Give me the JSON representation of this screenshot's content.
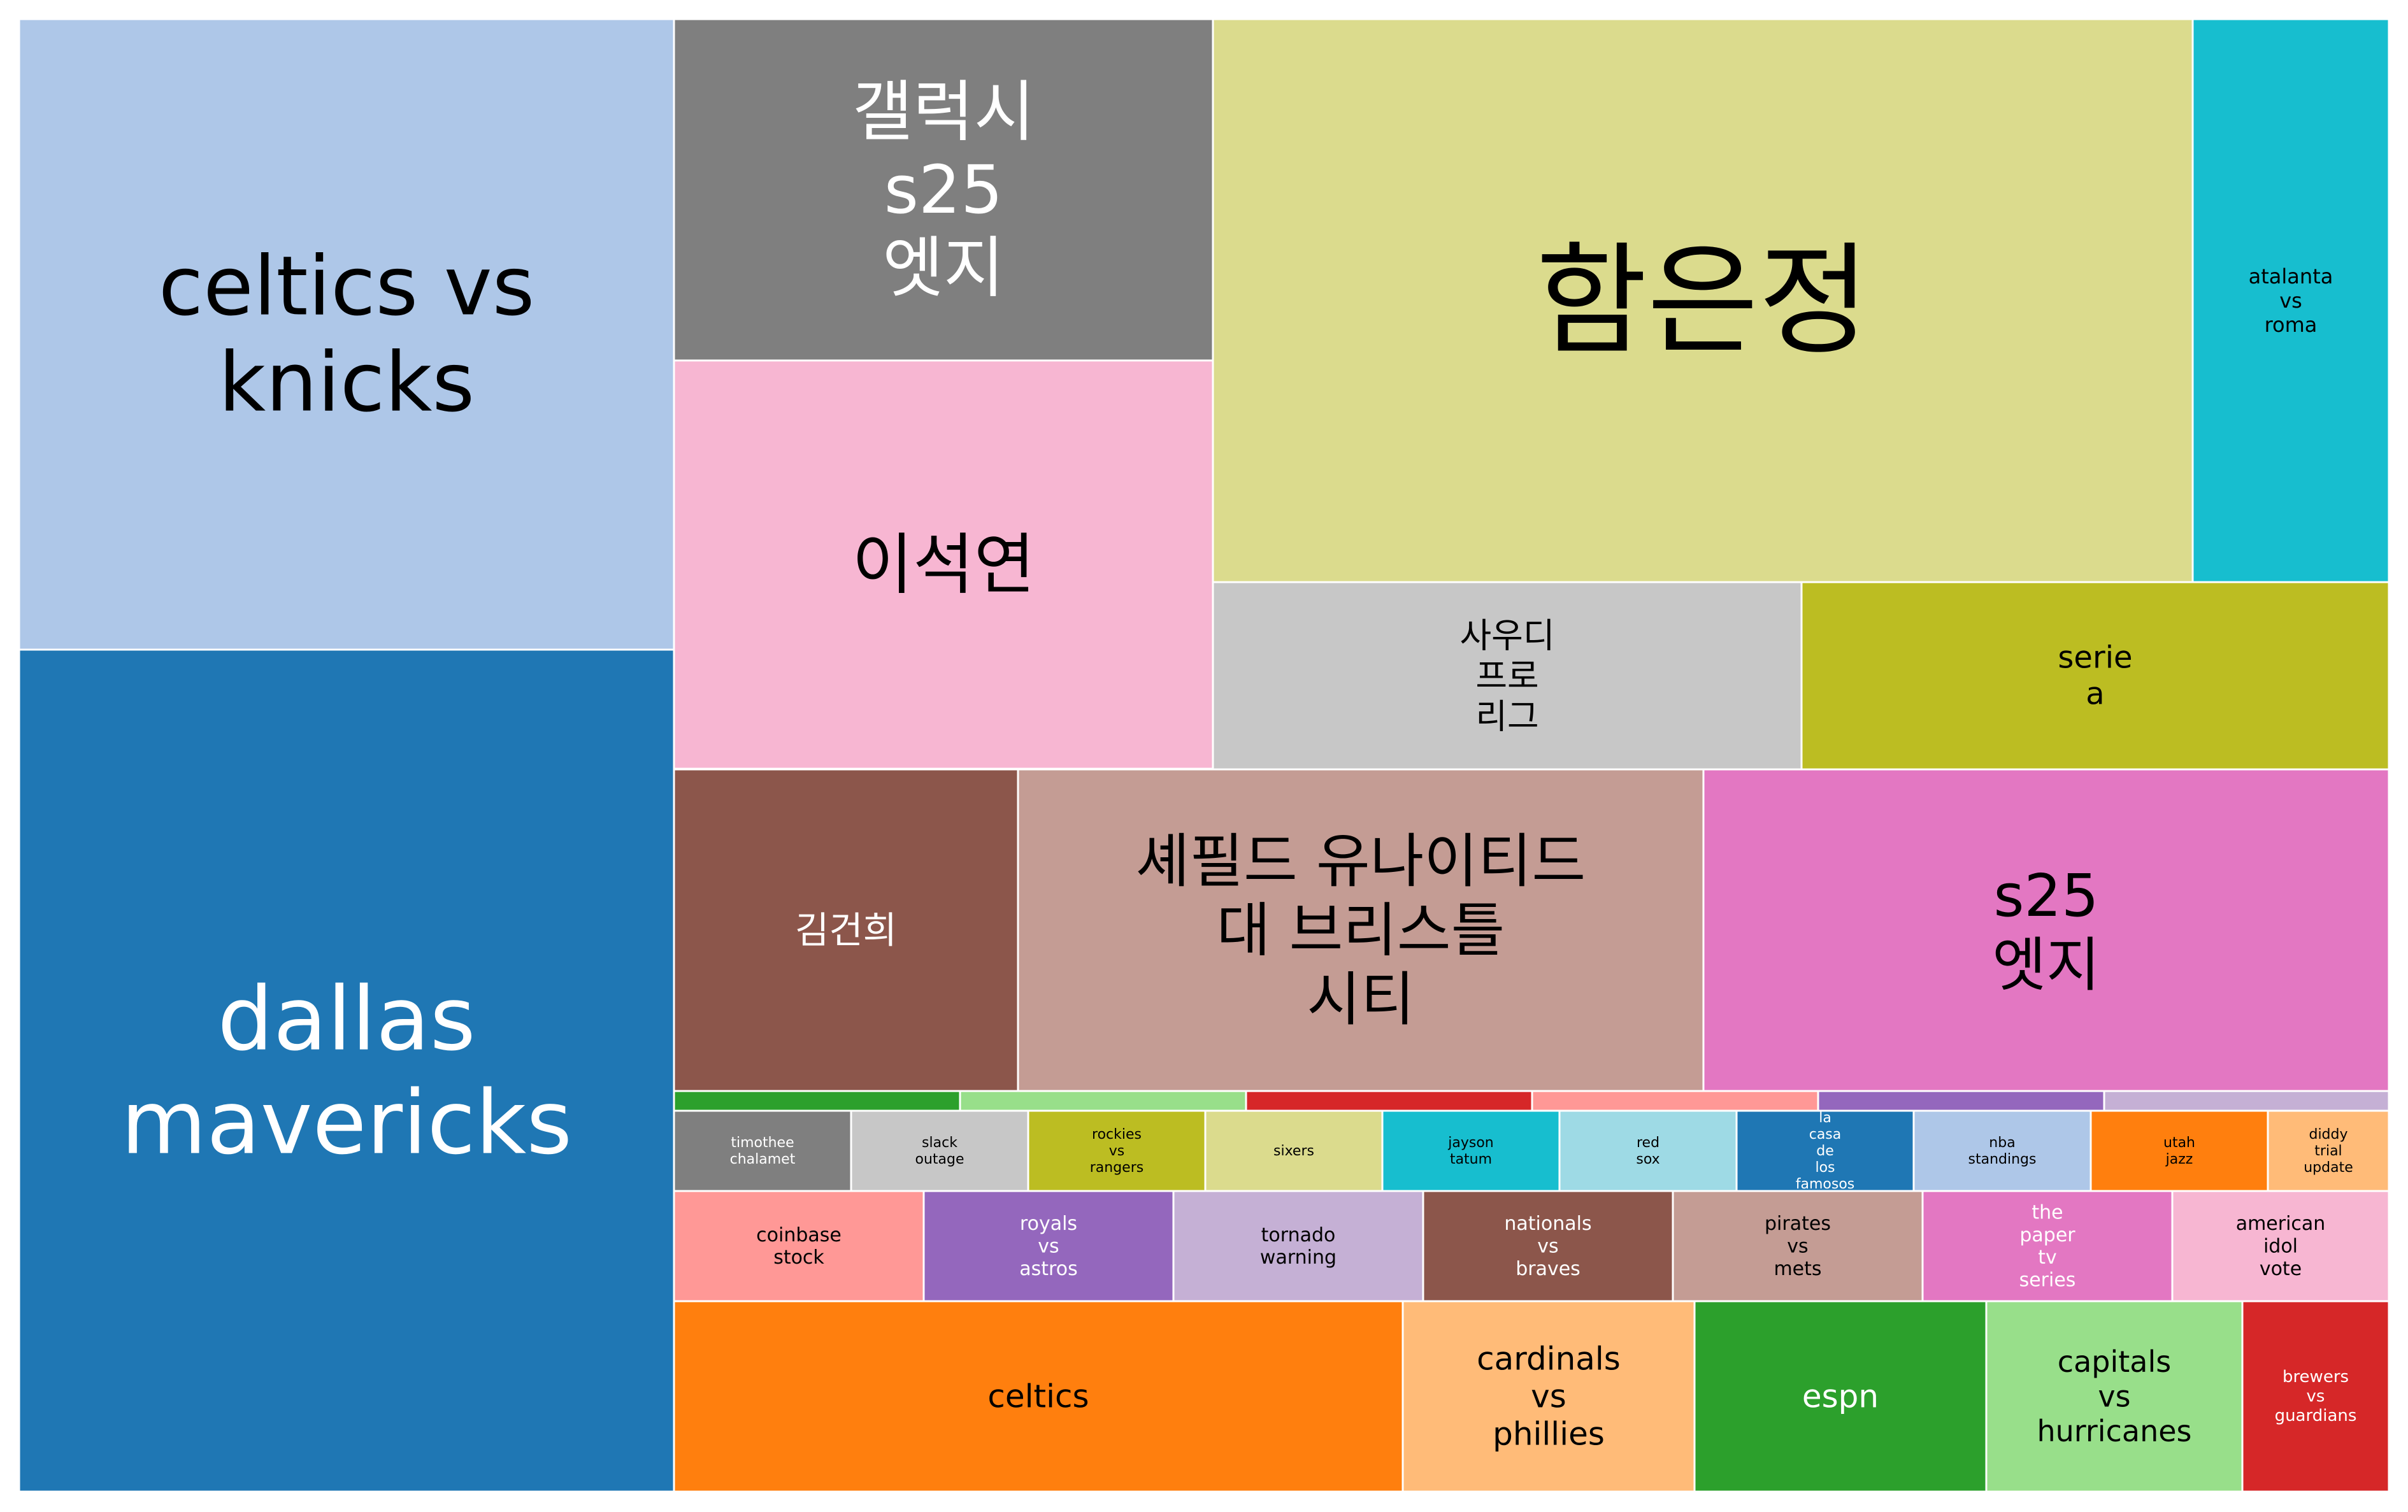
{
  "chart_data": {
    "type": "treemap",
    "title": "",
    "items": [
      {
        "label": "celtics vs knicks",
        "lines": [
          "celtics vs",
          "knicks"
        ],
        "color": "#aec7e8",
        "text_color": "#000000"
      },
      {
        "label": "dallas mavericks",
        "lines": [
          "dallas",
          "mavericks"
        ],
        "color": "#1f77b4",
        "text_color": "#ffffff"
      },
      {
        "label": "갤럭시 s25 엣지",
        "lines": [
          "갤럭시",
          "s25",
          "엣지"
        ],
        "color": "#7f7f7f",
        "text_color": "#ffffff"
      },
      {
        "label": "이석연",
        "lines": [
          "이석연"
        ],
        "color": "#f7b6d2",
        "text_color": "#000000"
      },
      {
        "label": "함은정",
        "lines": [
          "함은정"
        ],
        "color": "#dbdb8d",
        "text_color": "#000000"
      },
      {
        "label": "atalanta vs roma",
        "lines": [
          "atalanta",
          "vs",
          "roma"
        ],
        "color": "#17becf",
        "text_color": "#000000"
      },
      {
        "label": "사우디 프로 리그",
        "lines": [
          "사우디",
          "프로",
          "리그"
        ],
        "color": "#c7c7c7",
        "text_color": "#000000"
      },
      {
        "label": "serie a",
        "lines": [
          "serie",
          "a"
        ],
        "color": "#bcbd22",
        "text_color": "#000000"
      },
      {
        "label": "김건희",
        "lines": [
          "김건희"
        ],
        "color": "#8c564b",
        "text_color": "#ffffff"
      },
      {
        "label": "셰필드 유나이티드 대 브리스틀 시티",
        "lines": [
          "셰필드 유나이티드",
          "대 브리스틀",
          "시티"
        ],
        "color": "#c49c94",
        "text_color": "#000000"
      },
      {
        "label": "s25 엣지",
        "lines": [
          "s25",
          "엣지"
        ],
        "color": "#e377c2",
        "text_color": "#000000"
      },
      {
        "label": "",
        "lines": [],
        "color": "#2ca02c",
        "text_color": "#ffffff"
      },
      {
        "label": "",
        "lines": [],
        "color": "#98df8a",
        "text_color": "#000000"
      },
      {
        "label": "",
        "lines": [],
        "color": "#d62728",
        "text_color": "#ffffff"
      },
      {
        "label": "",
        "lines": [],
        "color": "#ff9896",
        "text_color": "#000000"
      },
      {
        "label": "",
        "lines": [],
        "color": "#9467bd",
        "text_color": "#ffffff"
      },
      {
        "label": "",
        "lines": [],
        "color": "#c5b0d5",
        "text_color": "#000000"
      },
      {
        "label": "timothee chalamet",
        "lines": [
          "timothee",
          "chalamet"
        ],
        "color": "#7f7f7f",
        "text_color": "#ffffff"
      },
      {
        "label": "slack outage",
        "lines": [
          "slack",
          "outage"
        ],
        "color": "#c7c7c7",
        "text_color": "#000000"
      },
      {
        "label": "rockies vs rangers",
        "lines": [
          "rockies",
          "vs",
          "rangers"
        ],
        "color": "#bcbd22",
        "text_color": "#000000"
      },
      {
        "label": "sixers",
        "lines": [
          "sixers"
        ],
        "color": "#dbdb8d",
        "text_color": "#000000"
      },
      {
        "label": "jayson tatum",
        "lines": [
          "jayson",
          "tatum"
        ],
        "color": "#17becf",
        "text_color": "#000000"
      },
      {
        "label": "red sox",
        "lines": [
          "red",
          "sox"
        ],
        "color": "#9edae5",
        "text_color": "#000000"
      },
      {
        "label": "la casa de los famosos",
        "lines": [
          "la",
          "casa",
          "de",
          "los",
          "famosos"
        ],
        "color": "#1f77b4",
        "text_color": "#ffffff"
      },
      {
        "label": "nba standings",
        "lines": [
          "nba",
          "standings"
        ],
        "color": "#aec7e8",
        "text_color": "#000000"
      },
      {
        "label": "utah jazz",
        "lines": [
          "utah",
          "jazz"
        ],
        "color": "#ff7f0e",
        "text_color": "#000000"
      },
      {
        "label": "diddy trial update",
        "lines": [
          "diddy",
          "trial",
          "update"
        ],
        "color": "#ffbb78",
        "text_color": "#000000"
      },
      {
        "label": "coinbase stock",
        "lines": [
          "coinbase",
          "stock"
        ],
        "color": "#ff9896",
        "text_color": "#000000"
      },
      {
        "label": "royals vs astros",
        "lines": [
          "royals",
          "vs",
          "astros"
        ],
        "color": "#9467bd",
        "text_color": "#ffffff"
      },
      {
        "label": "tornado warning",
        "lines": [
          "tornado",
          "warning"
        ],
        "color": "#c5b0d5",
        "text_color": "#000000"
      },
      {
        "label": "nationals vs braves",
        "lines": [
          "nationals",
          "vs",
          "braves"
        ],
        "color": "#8c564b",
        "text_color": "#ffffff"
      },
      {
        "label": "pirates vs mets",
        "lines": [
          "pirates",
          "vs",
          "mets"
        ],
        "color": "#c49c94",
        "text_color": "#000000"
      },
      {
        "label": "the paper tv series",
        "lines": [
          "the",
          "paper",
          "tv",
          "series"
        ],
        "color": "#e377c2",
        "text_color": "#ffffff"
      },
      {
        "label": "american idol vote",
        "lines": [
          "american",
          "idol",
          "vote"
        ],
        "color": "#f7b6d2",
        "text_color": "#000000"
      },
      {
        "label": "celtics",
        "lines": [
          "celtics"
        ],
        "color": "#ff7f0e",
        "text_color": "#000000"
      },
      {
        "label": "cardinals vs phillies",
        "lines": [
          "cardinals",
          "vs",
          "phillies"
        ],
        "color": "#ffbb78",
        "text_color": "#000000"
      },
      {
        "label": "espn",
        "lines": [
          "espn"
        ],
        "color": "#2ca02c",
        "text_color": "#ffffff"
      },
      {
        "label": "capitals vs hurricanes",
        "lines": [
          "capitals",
          "vs",
          "hurricanes"
        ],
        "color": "#98df8a",
        "text_color": "#000000"
      },
      {
        "label": "brewers vs guardians",
        "lines": [
          "brewers",
          "vs",
          "guardians"
        ],
        "color": "#d62728",
        "text_color": "#ffffff"
      }
    ]
  }
}
